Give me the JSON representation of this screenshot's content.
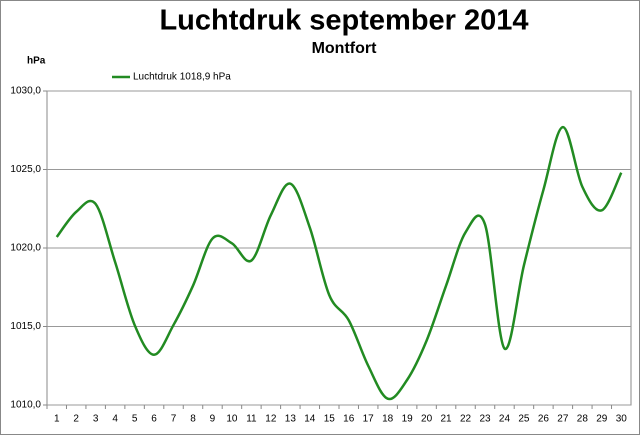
{
  "chart_data": {
    "type": "line",
    "title": "Luchtdruk september 2014",
    "subtitle": "Montfort",
    "y_label": "hPa",
    "categories": [
      "1",
      "2",
      "3",
      "4",
      "5",
      "6",
      "7",
      "8",
      "9",
      "10",
      "11",
      "12",
      "13",
      "14",
      "15",
      "16",
      "17",
      "18",
      "19",
      "20",
      "21",
      "22",
      "23",
      "24",
      "25",
      "26",
      "27",
      "28",
      "29",
      "30"
    ],
    "series": [
      {
        "name": "Luchtdruk 1018,9 hPa",
        "color": "#228b22",
        "values": [
          1020.7,
          1022.3,
          1022.8,
          1019.1,
          1015.1,
          1013.2,
          1015.1,
          1017.6,
          1020.6,
          1020.3,
          1019.2,
          1022.1,
          1024.1,
          1021.3,
          1017.0,
          1015.4,
          1012.5,
          1010.4,
          1011.6,
          1014.1,
          1017.6,
          1021.0,
          1021.5,
          1013.6,
          1018.9,
          1023.7,
          1027.7,
          1023.9,
          1022.4,
          1024.8
        ]
      }
    ],
    "ylim": [
      1010,
      1030
    ],
    "yticks": [
      {
        "value": 1010,
        "label": "1010,0"
      },
      {
        "value": 1015,
        "label": "1015,0"
      },
      {
        "value": 1020,
        "label": "1020,0"
      },
      {
        "value": 1025,
        "label": "1025,0"
      },
      {
        "value": 1030,
        "label": "1030,0"
      }
    ],
    "grid": true,
    "legend": "top-left"
  }
}
